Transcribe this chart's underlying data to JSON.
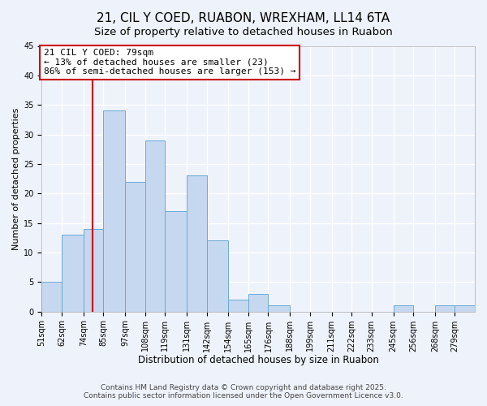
{
  "title": "21, CIL Y COED, RUABON, WREXHAM, LL14 6TA",
  "subtitle": "Size of property relative to detached houses in Ruabon",
  "xlabel": "Distribution of detached houses by size in Ruabon",
  "ylabel": "Number of detached properties",
  "bin_labels": [
    "51sqm",
    "62sqm",
    "74sqm",
    "85sqm",
    "97sqm",
    "108sqm",
    "119sqm",
    "131sqm",
    "142sqm",
    "154sqm",
    "165sqm",
    "176sqm",
    "188sqm",
    "199sqm",
    "211sqm",
    "222sqm",
    "233sqm",
    "245sqm",
    "256sqm",
    "268sqm",
    "279sqm"
  ],
  "bin_edges": [
    51,
    62,
    74,
    85,
    97,
    108,
    119,
    131,
    142,
    154,
    165,
    176,
    188,
    199,
    211,
    222,
    233,
    245,
    256,
    268,
    279,
    290
  ],
  "values": [
    5,
    13,
    14,
    34,
    22,
    29,
    17,
    23,
    12,
    2,
    3,
    1,
    0,
    0,
    0,
    0,
    0,
    1,
    0,
    1,
    1
  ],
  "bar_color": "#c5d8f0",
  "bar_edge_color": "#6aaad4",
  "vline_x": 79,
  "vline_color": "#cc0000",
  "annotation_title": "21 CIL Y COED: 79sqm",
  "annotation_line1": "← 13% of detached houses are smaller (23)",
  "annotation_line2": "86% of semi-detached houses are larger (153) →",
  "annotation_box_facecolor": "#ffffff",
  "annotation_box_edgecolor": "#cc0000",
  "ylim": [
    0,
    45
  ],
  "yticks": [
    0,
    5,
    10,
    15,
    20,
    25,
    30,
    35,
    40,
    45
  ],
  "footer1": "Contains HM Land Registry data © Crown copyright and database right 2025.",
  "footer2": "Contains public sector information licensed under the Open Government Licence v3.0.",
  "background_color": "#eef2fb",
  "grid_color": "#ffffff",
  "title_fontsize": 11,
  "subtitle_fontsize": 9.5,
  "xlabel_fontsize": 8.5,
  "ylabel_fontsize": 8,
  "annotation_fontsize": 8,
  "tick_fontsize": 7,
  "footer_fontsize": 6.5
}
